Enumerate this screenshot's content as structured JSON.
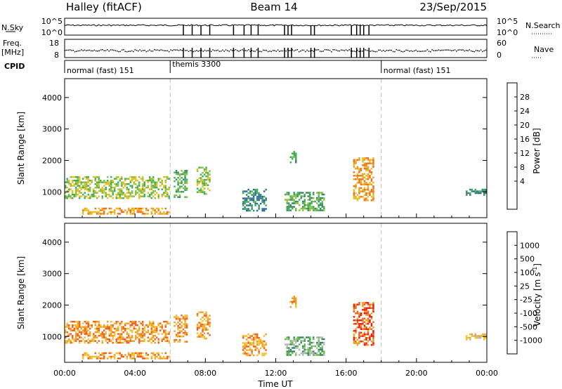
{
  "header": {
    "site": "Halley (fitACF)",
    "beam": "Beam 14",
    "date": "23/Sep/2015"
  },
  "labels": {
    "nsky": "N.Sky",
    "nsearch": "N.Search",
    "freq_top": "Freq.",
    "freq_unit": "[MHz]",
    "nave": "Nave",
    "cpid": "CPID",
    "nsky_ticks": [
      "10^5",
      "10^0"
    ],
    "freq_ticks": [
      "18",
      "8"
    ],
    "nave_ticks": [
      "60",
      "0"
    ]
  },
  "cpid": [
    {
      "label": "normal (fast) 151",
      "start": 0,
      "end": 6
    },
    {
      "label": "themis 3300",
      "start": 6,
      "end": 18
    },
    {
      "label": "normal (fast) 151",
      "start": 18,
      "end": 24
    }
  ],
  "x_axis": {
    "label": "Time UT",
    "ticks": [
      "00:00",
      "04:00",
      "08:00",
      "12:00",
      "16:00",
      "20:00",
      "00:00"
    ],
    "range_hours": [
      0,
      24
    ]
  },
  "y_axis": {
    "label": "Slant Range [km]",
    "ticks": [
      1000,
      2000,
      3000,
      4000
    ],
    "range": [
      180,
      4600
    ]
  },
  "power_scale": {
    "label": "Power [dB]",
    "ticks": [
      "28",
      "24",
      "20",
      "16",
      "12",
      "8",
      "4"
    ],
    "colors": [
      "#1a1aff",
      "#1f3fb0",
      "#2a6a9a",
      "#3a8a6a",
      "#3fb05a",
      "#8cc040",
      "#e8c020",
      "#f0a020",
      "#f07020",
      "#e84020",
      "#e81010"
    ]
  },
  "velocity_scale": {
    "label": "Velocity [m s",
    "exp": "-1",
    "suffix": "]",
    "ticks": [
      "1000",
      "500",
      "100",
      "25",
      "-25",
      "-100",
      "-500",
      "-1000"
    ],
    "colors": [
      "#1a3fd0",
      "#2a6a9a",
      "#3a8a6a",
      "#5fc040",
      "#b8b8b8",
      "#f0c030",
      "#f0a020",
      "#f06020",
      "#e82010"
    ]
  },
  "chart_data": {
    "type": "heatmap",
    "panels": [
      "Power [dB]",
      "Velocity [m s-1]"
    ],
    "x_range_hours": [
      0,
      24
    ],
    "y_range_km": [
      180,
      4600
    ],
    "gaps_hours": [
      6.75,
      7.25,
      7.75,
      8.25,
      9.6,
      10.2,
      10.6,
      11.0,
      12.5,
      12.7,
      12.9,
      14.0,
      14.2,
      16.3,
      16.6,
      16.8,
      17.0,
      17.3
    ],
    "regions": [
      {
        "t0": 0.0,
        "t1": 6.0,
        "r0": 800,
        "r1": 1500,
        "power": 14,
        "velocity": -200
      },
      {
        "t0": 1.0,
        "t1": 6.0,
        "r0": 280,
        "r1": 500,
        "power": 20,
        "velocity": -100
      },
      {
        "t0": 6.2,
        "t1": 7.0,
        "r0": 800,
        "r1": 1700,
        "power": 12,
        "velocity": -300
      },
      {
        "t0": 7.5,
        "t1": 8.3,
        "r0": 900,
        "r1": 1800,
        "power": 14,
        "velocity": -400
      },
      {
        "t0": 10.1,
        "t1": 11.5,
        "r0": 400,
        "r1": 1100,
        "power": 10,
        "velocity": -100
      },
      {
        "t0": 12.5,
        "t1": 14.8,
        "r0": 400,
        "r1": 1000,
        "power": 13,
        "velocity": 50
      },
      {
        "t0": 12.8,
        "t1": 13.2,
        "r0": 1900,
        "r1": 2300,
        "power": 12,
        "velocity": -100
      },
      {
        "t0": 16.4,
        "t1": 17.6,
        "r0": 700,
        "r1": 2100,
        "power": 20,
        "velocity": -600
      },
      {
        "t0": 22.8,
        "t1": 24.0,
        "r0": 900,
        "r1": 1100,
        "power": 8,
        "velocity": -50
      }
    ]
  }
}
